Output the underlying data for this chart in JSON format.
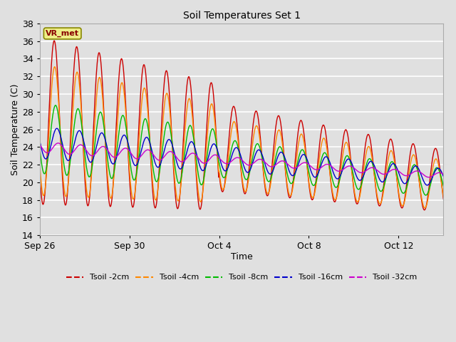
{
  "title": "Soil Temperatures Set 1",
  "xlabel": "Time",
  "ylabel": "Soil Temperature (C)",
  "ylim": [
    14,
    38
  ],
  "yticks": [
    14,
    16,
    18,
    20,
    22,
    24,
    26,
    28,
    30,
    32,
    34,
    36,
    38
  ],
  "xtick_labels": [
    "Sep 26",
    "Sep 30",
    "Oct 4",
    "Oct 8",
    "Oct 12"
  ],
  "xtick_pos": [
    0,
    4,
    8,
    12,
    16
  ],
  "xlim": [
    0,
    18
  ],
  "bg_color": "#e0e0e0",
  "plot_bg_color": "#e0e0e0",
  "grid_color": "#ffffff",
  "colors": {
    "Tsoil -2cm": "#cc0000",
    "Tsoil -4cm": "#ff8800",
    "Tsoil -8cm": "#00bb00",
    "Tsoil -16cm": "#0000cc",
    "Tsoil -32cm": "#cc00cc"
  },
  "annotation_text": "VR_met",
  "annotation_bg": "#eeee88",
  "annotation_border": "#888800",
  "figsize": [
    6.4,
    4.8
  ],
  "dpi": 100
}
